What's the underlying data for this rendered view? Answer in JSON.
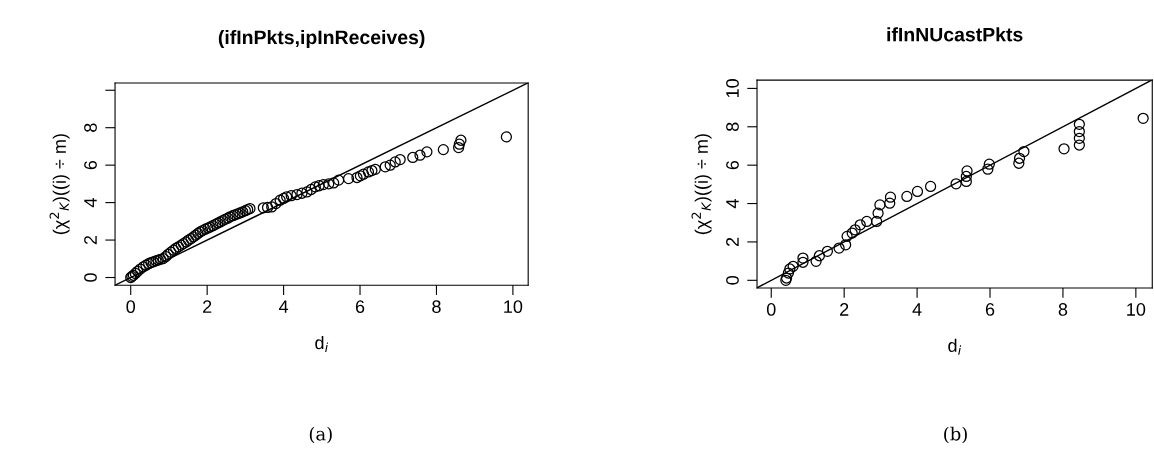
{
  "chart_data": [
    {
      "type": "scatter",
      "title": "(ifInPkts,ipInReceives)",
      "xlabel": "d$_{i}$",
      "ylabel": "(χ$^{2}$$_{K}$)((i) ÷ m)",
      "grid": false,
      "legend": false,
      "xlim": [
        -0.41,
        10.4
      ],
      "ylim": [
        -0.41,
        10.39
      ],
      "xticks": [
        0,
        2,
        4,
        6,
        8,
        10
      ],
      "yticks": [
        0,
        2,
        4,
        6,
        8,
        {
          "value": 10,
          "label": null
        }
      ],
      "annotations": [
        "(a)"
      ],
      "series": [
        {
          "color": "#000000",
          "marker": "circle",
          "x": [
            0,
            0.03,
            0.07,
            0.12,
            0.18,
            0.25,
            0.33,
            0.4,
            0.47,
            0.53,
            0.59,
            0.66,
            0.72,
            0.78,
            0.85,
            0.92,
            0.98,
            1.05,
            1.12,
            1.18,
            1.25,
            1.32,
            1.38,
            1.45,
            1.51,
            1.58,
            1.64,
            1.7,
            1.76,
            1.82,
            1.88,
            1.95,
            2.02,
            2.08,
            2.15,
            2.22,
            2.28,
            2.34,
            2.41,
            2.47,
            2.54,
            2.6,
            2.67,
            2.73,
            2.8,
            2.86,
            2.93,
            3.0,
            3.06,
            3.12,
            3.47,
            3.58,
            3.69,
            3.8,
            3.91,
            4.0,
            4.08,
            4.2,
            4.35,
            4.48,
            4.61,
            4.72,
            4.83,
            4.93,
            5.04,
            5.18,
            5.31,
            5.44,
            5.7,
            5.92,
            6.01,
            6.09,
            6.22,
            6.31,
            6.4,
            6.66,
            6.79,
            6.92,
            7.05,
            7.38,
            7.57,
            7.75,
            8.18,
            8.58,
            8.6,
            8.64,
            9.83
          ],
          "values": [
            0,
            0.06,
            0.12,
            0.22,
            0.33,
            0.45,
            0.57,
            0.66,
            0.74,
            0.8,
            0.84,
            0.89,
            0.93,
            0.97,
            1.01,
            1.12,
            1.24,
            1.35,
            1.46,
            1.55,
            1.64,
            1.73,
            1.81,
            1.9,
            1.99,
            2.08,
            2.17,
            2.26,
            2.35,
            2.44,
            2.51,
            2.58,
            2.64,
            2.7,
            2.77,
            2.84,
            2.91,
            2.97,
            3.04,
            3.11,
            3.17,
            3.24,
            3.3,
            3.35,
            3.4,
            3.45,
            3.51,
            3.57,
            3.63,
            3.68,
            3.72,
            3.74,
            3.77,
            3.95,
            4.13,
            4.22,
            4.31,
            4.37,
            4.43,
            4.5,
            4.57,
            4.7,
            4.84,
            4.9,
            4.96,
            5.0,
            5.05,
            5.2,
            5.28,
            5.34,
            5.43,
            5.52,
            5.64,
            5.71,
            5.78,
            5.91,
            6.0,
            6.17,
            6.3,
            6.41,
            6.53,
            6.71,
            6.83,
            6.94,
            7.12,
            7.33,
            7.51
          ]
        },
        {
          "type": "line",
          "color": "#000000",
          "marker": "none",
          "x": [
            -0.41,
            10.39
          ],
          "values": [
            -0.41,
            10.39
          ]
        }
      ]
    },
    {
      "type": "scatter",
      "title": "ifInNUcastPkts",
      "xlabel": "d$_{i}$",
      "ylabel": "(χ$^{2}$$_{K}$)((i) ÷ m)",
      "grid": false,
      "legend": false,
      "xlim": [
        -0.39,
        10.45
      ],
      "ylim": [
        -0.4,
        10.43
      ],
      "xticks": [
        0,
        2,
        4,
        6,
        8,
        10
      ],
      "yticks": [
        0,
        2,
        4,
        6,
        8,
        10
      ],
      "annotations": [
        "(b)"
      ],
      "series": [
        {
          "color": "#000000",
          "marker": "circle",
          "x": [
            0.4,
            0.42,
            0.47,
            0.51,
            0.6,
            0.87,
            0.87,
            1.23,
            1.32,
            1.54,
            1.86,
            2.04,
            2.08,
            2.22,
            2.3,
            2.44,
            2.62,
            2.89,
            2.93,
            2.98,
            3.25,
            3.27,
            3.72,
            4.01,
            4.37,
            5.07,
            5.35,
            5.35,
            5.37,
            5.94,
            5.98,
            6.79,
            6.81,
            6.93,
            8.03,
            8.45,
            8.45,
            8.45,
            8.45,
            10.2
          ],
          "values": [
            0,
            0.12,
            0.38,
            0.59,
            0.73,
            0.94,
            1.16,
            0.99,
            1.28,
            1.51,
            1.68,
            1.85,
            2.29,
            2.46,
            2.63,
            2.89,
            3.07,
            3.07,
            3.5,
            3.93,
            4.02,
            4.33,
            4.37,
            4.63,
            4.89,
            5.03,
            5.15,
            5.41,
            5.7,
            5.79,
            6.05,
            6.1,
            6.36,
            6.71,
            6.85,
            7.05,
            7.4,
            7.75,
            8.13,
            8.44
          ]
        },
        {
          "type": "line",
          "color": "#000000",
          "marker": "none",
          "x": [
            -0.39,
            10.43
          ],
          "values": [
            -0.39,
            10.43
          ]
        }
      ]
    }
  ]
}
